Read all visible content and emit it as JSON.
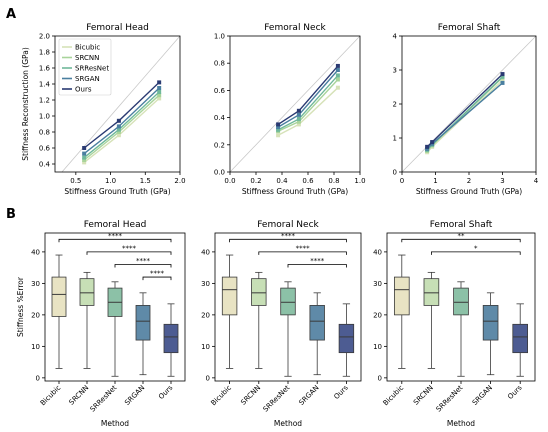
{
  "panel_labels": [
    "A",
    "B"
  ],
  "colors": {
    "Bicubic": "#d6e2b8",
    "SRCNN": "#a8d49a",
    "SRResNet": "#6fb89a",
    "SRGAN": "#4a7fa0",
    "Ours": "#2a3a72",
    "box_Bicubic": "#e8e3c3",
    "box_SRCNN": "#c7dfb6",
    "box_SRResNet": "#8cc1a7",
    "box_SRGAN": "#5f8aa8",
    "box_Ours": "#4d5c92"
  },
  "chart_data": [
    {
      "type": "line",
      "title": "Femoral Head",
      "xlabel": "Stiffness Ground Truth (GPa)",
      "ylabel": "Stiffness Reconstruction (GPa)",
      "xlim": [
        0.2,
        2.0
      ],
      "ylim": [
        0.3,
        2.0
      ],
      "xticks": [
        0.5,
        1.0,
        1.5,
        2.0
      ],
      "yticks": [
        0.4,
        0.6,
        0.8,
        1.0,
        1.2,
        1.4,
        1.6,
        1.8,
        2.0
      ],
      "xtick_labels": [
        "0.5",
        "1.0",
        "1.5",
        "2.0"
      ],
      "ytick_labels": [
        "0.4",
        "0.6",
        "0.8",
        "1.0",
        "1.2",
        "1.4",
        "1.6",
        "1.8",
        "2.0"
      ],
      "x": [
        0.62,
        1.12,
        1.7
      ],
      "series": [
        {
          "name": "Bicubic",
          "values": [
            0.42,
            0.76,
            1.22
          ]
        },
        {
          "name": "SRCNN",
          "values": [
            0.45,
            0.8,
            1.26
          ]
        },
        {
          "name": "SRResNet",
          "values": [
            0.48,
            0.83,
            1.3
          ]
        },
        {
          "name": "SRGAN",
          "values": [
            0.53,
            0.87,
            1.35
          ]
        },
        {
          "name": "Ours",
          "values": [
            0.6,
            0.94,
            1.42
          ]
        }
      ],
      "legend": "upper-left",
      "identity_line": true
    },
    {
      "type": "line",
      "title": "Femoral Neck",
      "xlabel": "Stiffness Ground Truth (GPa)",
      "ylabel": "",
      "xlim": [
        0.0,
        1.0
      ],
      "ylim": [
        0.0,
        1.0
      ],
      "xticks": [
        0.0,
        0.2,
        0.4,
        0.6,
        0.8,
        1.0
      ],
      "yticks": [
        0.0,
        0.2,
        0.4,
        0.6,
        0.8,
        1.0
      ],
      "xtick_labels": [
        "0.0",
        "0.2",
        "0.4",
        "0.6",
        "0.8",
        "1.0"
      ],
      "ytick_labels": [
        "0.0",
        "0.2",
        "0.4",
        "0.6",
        "0.8",
        "1.0"
      ],
      "x": [
        0.37,
        0.53,
        0.83
      ],
      "series": [
        {
          "name": "Bicubic",
          "values": [
            0.27,
            0.35,
            0.62
          ]
        },
        {
          "name": "SRCNN",
          "values": [
            0.3,
            0.37,
            0.68
          ]
        },
        {
          "name": "SRResNet",
          "values": [
            0.31,
            0.39,
            0.71
          ]
        },
        {
          "name": "SRGAN",
          "values": [
            0.33,
            0.42,
            0.75
          ]
        },
        {
          "name": "Ours",
          "values": [
            0.35,
            0.45,
            0.78
          ]
        }
      ],
      "identity_line": true
    },
    {
      "type": "line",
      "title": "Femoral Shaft",
      "xlabel": "Stiffness Ground Truth (GPa)",
      "ylabel": "",
      "xlim": [
        0,
        4
      ],
      "ylim": [
        0,
        4
      ],
      "xticks": [
        0,
        1,
        2,
        3,
        4
      ],
      "yticks": [
        0,
        1,
        2,
        3,
        4
      ],
      "xtick_labels": [
        "0",
        "1",
        "2",
        "3",
        "4"
      ],
      "ytick_labels": [
        "0",
        "1",
        "2",
        "3",
        "4"
      ],
      "x": [
        0.75,
        0.9,
        3.0
      ],
      "series": [
        {
          "name": "Bicubic",
          "values": [
            0.58,
            0.74,
            2.7
          ]
        },
        {
          "name": "SRCNN",
          "values": [
            0.62,
            0.78,
            2.78
          ]
        },
        {
          "name": "SRResNet",
          "values": [
            0.65,
            0.8,
            2.8
          ]
        },
        {
          "name": "SRGAN",
          "values": [
            0.68,
            0.83,
            2.62
          ]
        },
        {
          "name": "Ours",
          "values": [
            0.74,
            0.88,
            2.88
          ]
        }
      ],
      "identity_line": true
    },
    {
      "type": "box",
      "title": "Femoral Head",
      "xlabel": "Method",
      "ylabel": "Stiffness %Error",
      "ylim": [
        -1,
        46
      ],
      "yticks": [
        0,
        10,
        20,
        30,
        40
      ],
      "ytick_labels": [
        "0",
        "10",
        "20",
        "30",
        "40"
      ],
      "categories": [
        "Bicubic",
        "SRCNN",
        "SRResNet",
        "SRGAN",
        "Ours"
      ],
      "boxes": [
        {
          "min": 3,
          "q1": 19.5,
          "median": 26.5,
          "q3": 32,
          "max": 39
        },
        {
          "min": 3,
          "q1": 23,
          "median": 27,
          "q3": 31.5,
          "max": 33.5
        },
        {
          "min": 0.5,
          "q1": 19.5,
          "median": 24,
          "q3": 28.5,
          "max": 30.5
        },
        {
          "min": 1,
          "q1": 12,
          "median": 18,
          "q3": 23,
          "max": 27
        },
        {
          "min": 0.5,
          "q1": 8,
          "median": 13,
          "q3": 17,
          "max": 23.5
        }
      ],
      "significance": [
        {
          "from": "Bicubic",
          "to": "Ours",
          "y": 44,
          "label": "****"
        },
        {
          "from": "SRCNN",
          "to": "Ours",
          "y": 40,
          "label": "****"
        },
        {
          "from": "SRResNet",
          "to": "Ours",
          "y": 36,
          "label": "****"
        },
        {
          "from": "SRGAN",
          "to": "Ours",
          "y": 32,
          "label": "****"
        }
      ]
    },
    {
      "type": "box",
      "title": "Femoral Neck",
      "xlabel": "Method",
      "ylabel": "",
      "ylim": [
        -1,
        46
      ],
      "yticks": [
        0,
        10,
        20,
        30,
        40
      ],
      "ytick_labels": [
        "0",
        "10",
        "20",
        "30",
        "40"
      ],
      "categories": [
        "Bicubic",
        "SRCNN",
        "SRResNet",
        "SRGAN",
        "Ours"
      ],
      "boxes": [
        {
          "min": 3,
          "q1": 20,
          "median": 28,
          "q3": 32,
          "max": 39
        },
        {
          "min": 3,
          "q1": 23,
          "median": 27,
          "q3": 31.5,
          "max": 33.5
        },
        {
          "min": 0.5,
          "q1": 20,
          "median": 24,
          "q3": 28.5,
          "max": 30.5
        },
        {
          "min": 1,
          "q1": 12,
          "median": 18,
          "q3": 23,
          "max": 27
        },
        {
          "min": 0.5,
          "q1": 8,
          "median": 13,
          "q3": 17,
          "max": 23.5
        }
      ],
      "significance": [
        {
          "from": "Bicubic",
          "to": "Ours",
          "y": 44,
          "label": "****"
        },
        {
          "from": "SRCNN",
          "to": "Ours",
          "y": 40,
          "label": "****"
        },
        {
          "from": "SRResNet",
          "to": "Ours",
          "y": 36,
          "label": "****"
        }
      ]
    },
    {
      "type": "box",
      "title": "Femoral Shaft",
      "xlabel": "Method",
      "ylabel": "",
      "ylim": [
        -1,
        46
      ],
      "yticks": [
        0,
        10,
        20,
        30,
        40
      ],
      "ytick_labels": [
        "0",
        "10",
        "20",
        "30",
        "40"
      ],
      "categories": [
        "Bicubic",
        "SRCNN",
        "SRResNet",
        "SRGAN",
        "Ours"
      ],
      "boxes": [
        {
          "min": 3,
          "q1": 20,
          "median": 28,
          "q3": 32,
          "max": 39
        },
        {
          "min": 3,
          "q1": 23,
          "median": 27,
          "q3": 31.5,
          "max": 33.5
        },
        {
          "min": 0.5,
          "q1": 20,
          "median": 24,
          "q3": 28.5,
          "max": 30.5
        },
        {
          "min": 1,
          "q1": 12,
          "median": 18,
          "q3": 23,
          "max": 27
        },
        {
          "min": 0.5,
          "q1": 8,
          "median": 13,
          "q3": 17,
          "max": 23.5
        }
      ],
      "significance": [
        {
          "from": "Bicubic",
          "to": "Ours",
          "y": 44,
          "label": "**"
        },
        {
          "from": "SRCNN",
          "to": "Ours",
          "y": 40,
          "label": "*"
        }
      ]
    }
  ]
}
